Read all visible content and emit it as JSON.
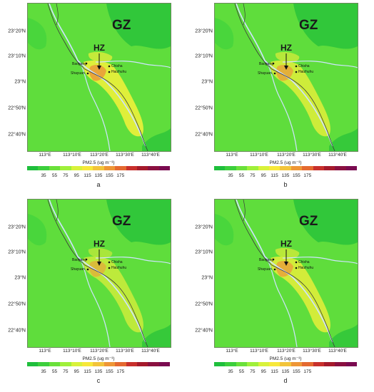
{
  "panels": [
    {
      "id": "a",
      "label": "a",
      "variant": 1.0
    },
    {
      "id": "b",
      "label": "b",
      "variant": 0.75
    },
    {
      "id": "c",
      "label": "c",
      "variant": 0.5
    },
    {
      "id": "d",
      "label": "d",
      "variant": 0.8
    }
  ],
  "y_ticks": [
    "23°20′N",
    "23°10′N",
    "23°N",
    "22°50′N",
    "22°40′N"
  ],
  "x_ticks": [
    "113°E",
    "113°10′E",
    "113°20′E",
    "113°30′E",
    "113°40′E"
  ],
  "map_labels": {
    "gz": "GZ",
    "hz": "HZ",
    "baogang": "Baogang",
    "shayuan": "Shayuan",
    "chisha": "Chisha",
    "haizhuhu": "Haizhuhu"
  },
  "colorbar": {
    "unit": "PM2.5 (ug m⁻³)",
    "ticks": [
      "35",
      "55",
      "75",
      "95",
      "115",
      "135",
      "155",
      "175"
    ],
    "colors": [
      "#1fbf3c",
      "#3ccf3c",
      "#6ae03a",
      "#9ff03a",
      "#d8f23a",
      "#f7e83a",
      "#f2c43a",
      "#ee9636",
      "#e46930",
      "#c8302c",
      "#a51a2c",
      "#8a1040",
      "#7a0a50"
    ]
  },
  "colors": {
    "background_green": "#5fdd3c",
    "dark_green": "#2cc43a",
    "yellow": "#e6ef3a",
    "orange": "#e9a13a",
    "river": "#cfe3ff",
    "boundary": "#3a3a3a"
  }
}
